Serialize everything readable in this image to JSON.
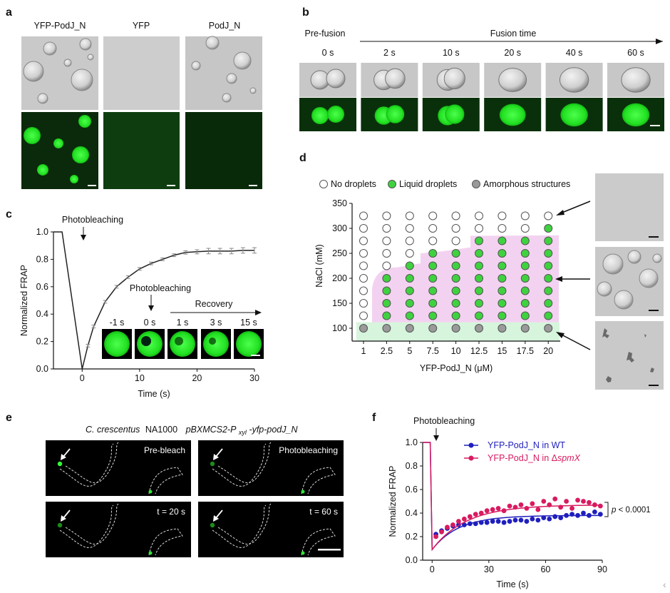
{
  "panels": {
    "a": {
      "label": "a",
      "columns": [
        "YFP-PodJ_N",
        "YFP",
        "PodJ_N"
      ]
    },
    "b": {
      "label": "b",
      "prefusion": "Pre-fusion",
      "fusion": "Fusion time",
      "times": [
        "0 s",
        "2 s",
        "10 s",
        "20 s",
        "40 s",
        "60 s"
      ]
    },
    "c": {
      "label": "c",
      "photobleaching_top": "Photobleaching",
      "photobleaching_inset": "Photobleaching",
      "recovery": "Recovery",
      "inset_times": [
        "-1 s",
        "0 s",
        "1 s",
        "3 s",
        "15 s"
      ]
    },
    "d": {
      "label": "d",
      "legend": [
        "No droplets",
        "Liquid droplets",
        "Amorphous structures"
      ],
      "colors": {
        "none": "#ffffff",
        "liquid": "#3fd23f",
        "amorphous": "#9a9a9a",
        "pink_region": "#f3d2f1",
        "green_region": "#d6f5dc"
      }
    },
    "e": {
      "label": "e",
      "title_italic": "C. crescentus",
      "title_strain": "NA1000",
      "title_plasmid": "pBXMCS2-P",
      "title_sub": "xyl",
      "title_gene": "-yfp-podJ_N",
      "images": [
        "Pre-bleach",
        "Photobleaching",
        "t = 20 s",
        "t = 60 s"
      ]
    },
    "f": {
      "label": "f",
      "photobleaching": "Photobleaching",
      "legend_wt": "YFP-PodJ_N in WT",
      "legend_mut_prefix": "YFP-PodJ_N in ",
      "legend_mut_delta": "Δ",
      "legend_mut_gene": "spmX",
      "p_prefix": "p",
      "p_suffix": " < 0.0001",
      "colors": {
        "wt": "#1f1fbf",
        "mut": "#d81b60"
      }
    }
  },
  "chart_data": [
    {
      "id": "c",
      "type": "line",
      "xlabel": "Time (s)",
      "ylabel": "Normalized FRAP",
      "xlim": [
        -5,
        30
      ],
      "ylim": [
        0,
        1.0
      ],
      "xticks": [
        0,
        10,
        20,
        30
      ],
      "yticks": [
        0.0,
        0.2,
        0.4,
        0.6,
        0.8,
        1.0
      ],
      "series": [
        {
          "x": [
            -5,
            -3.5,
            0,
            1,
            2,
            4,
            6,
            8,
            10,
            12,
            14,
            16,
            18,
            20,
            22,
            24,
            26,
            28,
            30
          ],
          "y": [
            1.0,
            1.0,
            0.0,
            0.17,
            0.31,
            0.49,
            0.6,
            0.67,
            0.73,
            0.77,
            0.8,
            0.83,
            0.85,
            0.855,
            0.86,
            0.86,
            0.86,
            0.865,
            0.865
          ],
          "err": [
            0,
            0,
            0,
            0.01,
            0.01,
            0.01,
            0.01,
            0.01,
            0.01,
            0.01,
            0.01,
            0.01,
            0.012,
            0.015,
            0.02,
            0.02,
            0.02,
            0.02,
            0.02
          ]
        }
      ]
    },
    {
      "id": "d",
      "type": "scatter",
      "xlabel": "YFP-PodJ_N (μM)",
      "ylabel": "NaCl (mM)",
      "categories": [
        "1",
        "2.5",
        "5",
        "7.5",
        "10",
        "12.5",
        "15",
        "17.5",
        "20"
      ],
      "yticks": [
        100,
        150,
        200,
        250,
        300,
        350
      ],
      "ylim": [
        75,
        350
      ],
      "rows_mM": [
        325,
        300,
        275,
        250,
        225,
        200,
        175,
        150,
        125,
        100
      ],
      "states": [
        [
          "none",
          "none",
          "none",
          "none",
          "none",
          "none",
          "none",
          "none",
          "none"
        ],
        [
          "none",
          "none",
          "none",
          "none",
          "none",
          "none",
          "none",
          "none",
          "liquid"
        ],
        [
          "none",
          "none",
          "none",
          "none",
          "none",
          "liquid",
          "liquid",
          "liquid",
          "liquid"
        ],
        [
          "none",
          "none",
          "none",
          "liquid",
          "liquid",
          "liquid",
          "liquid",
          "liquid",
          "liquid"
        ],
        [
          "none",
          "none",
          "liquid",
          "liquid",
          "liquid",
          "liquid",
          "liquid",
          "liquid",
          "liquid"
        ],
        [
          "none",
          "liquid",
          "liquid",
          "liquid",
          "liquid",
          "liquid",
          "liquid",
          "liquid",
          "liquid"
        ],
        [
          "none",
          "liquid",
          "liquid",
          "liquid",
          "liquid",
          "liquid",
          "liquid",
          "liquid",
          "liquid"
        ],
        [
          "none",
          "liquid",
          "liquid",
          "liquid",
          "liquid",
          "liquid",
          "liquid",
          "liquid",
          "liquid"
        ],
        [
          "none",
          "liquid",
          "liquid",
          "liquid",
          "liquid",
          "liquid",
          "liquid",
          "liquid",
          "liquid"
        ],
        [
          "amorphous",
          "amorphous",
          "amorphous",
          "amorphous",
          "amorphous",
          "amorphous",
          "amorphous",
          "amorphous",
          "amorphous"
        ]
      ]
    },
    {
      "id": "f",
      "type": "scatter",
      "xlabel": "Time (s)",
      "ylabel": "Normalized FRAP",
      "xlim": [
        -5,
        90
      ],
      "ylim": [
        0,
        1.0
      ],
      "xticks": [
        0,
        30,
        60,
        90
      ],
      "yticks": [
        0.0,
        0.2,
        0.4,
        0.6,
        0.8,
        1.0
      ],
      "series": [
        {
          "name": "YFP-PodJ_N in WT",
          "x": [
            2,
            5,
            8,
            11,
            14,
            17,
            20,
            23,
            26,
            29,
            32,
            35,
            38,
            41,
            44,
            47,
            50,
            53,
            56,
            59,
            62,
            65,
            68,
            71,
            74,
            77,
            80,
            83,
            86,
            89
          ],
          "y": [
            0.22,
            0.25,
            0.27,
            0.29,
            0.3,
            0.3,
            0.31,
            0.31,
            0.32,
            0.32,
            0.33,
            0.33,
            0.32,
            0.33,
            0.34,
            0.34,
            0.33,
            0.35,
            0.34,
            0.36,
            0.35,
            0.37,
            0.36,
            0.38,
            0.39,
            0.38,
            0.4,
            0.38,
            0.41,
            0.39
          ]
        },
        {
          "name": "YFP-PodJ_N in ΔspmX",
          "x": [
            2,
            5,
            8,
            11,
            14,
            17,
            20,
            23,
            26,
            29,
            32,
            35,
            38,
            41,
            44,
            47,
            50,
            53,
            56,
            59,
            62,
            65,
            68,
            71,
            74,
            77,
            80,
            83,
            86,
            89
          ],
          "y": [
            0.2,
            0.24,
            0.28,
            0.3,
            0.33,
            0.35,
            0.37,
            0.39,
            0.4,
            0.42,
            0.43,
            0.44,
            0.42,
            0.46,
            0.45,
            0.47,
            0.44,
            0.48,
            0.43,
            0.5,
            0.47,
            0.52,
            0.45,
            0.5,
            0.44,
            0.51,
            0.5,
            0.49,
            0.47,
            0.46
          ]
        }
      ],
      "annotation": "p < 0.0001"
    }
  ]
}
